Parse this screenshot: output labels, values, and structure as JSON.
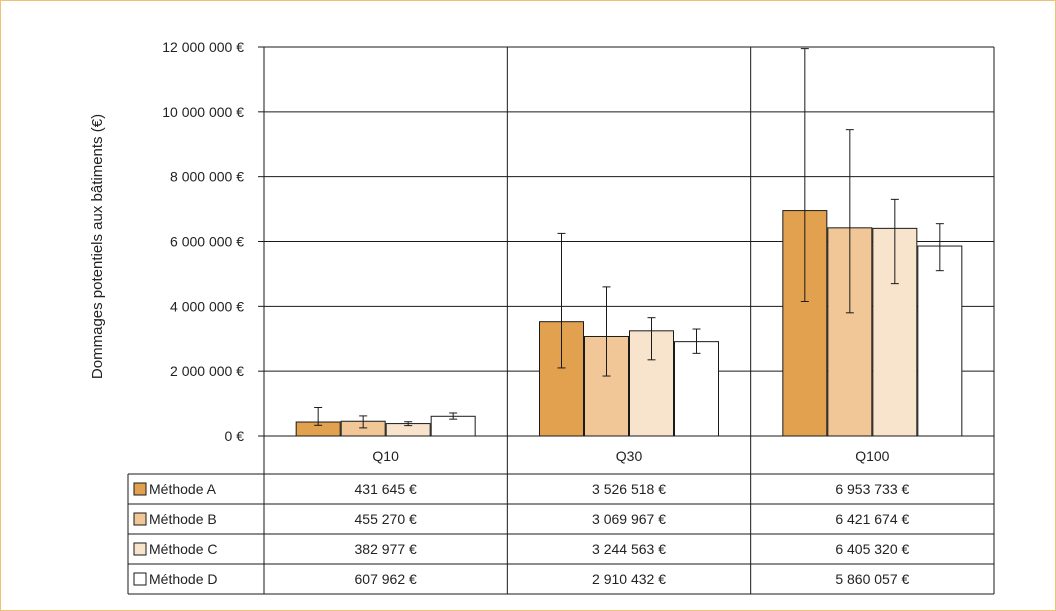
{
  "colors": {
    "frame": "#f2c075",
    "axis": "#1a1a1a",
    "text": "#222222"
  },
  "chart_data": {
    "type": "bar",
    "title": "",
    "ylabel": "Dommages potentiels aux bâtiments (€)",
    "xlabel": "",
    "ylim": [
      0,
      12000000
    ],
    "y_ticks": [
      0,
      2000000,
      4000000,
      6000000,
      8000000,
      10000000,
      12000000
    ],
    "y_tick_labels": [
      "0 €",
      "2 000 000 €",
      "4 000 000 €",
      "6 000 000 €",
      "8 000 000 €",
      "10 000 000 €",
      "12 000 000 €"
    ],
    "grid": true,
    "legend": "data-table",
    "categories": [
      "Q10",
      "Q30",
      "Q100"
    ],
    "series": [
      {
        "name": "Méthode A",
        "color": "#e2a14e",
        "values": [
          431645,
          3526518,
          6953733
        ],
        "value_labels": [
          "431 645 €",
          "3 526 518 €",
          "6 953 733 €"
        ],
        "error_low": [
          330000,
          2100000,
          4150000
        ],
        "error_high": [
          880000,
          6250000,
          11950000
        ]
      },
      {
        "name": "Méthode B",
        "color": "#f2c797",
        "values": [
          455270,
          3069967,
          6421674
        ],
        "value_labels": [
          "455 270 €",
          "3 069 967 €",
          "6 421 674 €"
        ],
        "error_low": [
          250000,
          1850000,
          3800000
        ],
        "error_high": [
          620000,
          4600000,
          9450000
        ]
      },
      {
        "name": "Méthode C",
        "color": "#f8e4cd",
        "values": [
          382977,
          3244563,
          6405320
        ],
        "value_labels": [
          "382 977 €",
          "3 244 563 €",
          "6 405 320 €"
        ],
        "error_low": [
          320000,
          2350000,
          4700000
        ],
        "error_high": [
          440000,
          3650000,
          7300000
        ]
      },
      {
        "name": "Méthode D",
        "color": "#ffffff",
        "values": [
          607962,
          2910432,
          5860057
        ],
        "value_labels": [
          "607 962 €",
          "2 910 432 €",
          "5 860 057 €"
        ],
        "error_low": [
          520000,
          2550000,
          5100000
        ],
        "error_high": [
          710000,
          3300000,
          6550000
        ]
      }
    ]
  }
}
